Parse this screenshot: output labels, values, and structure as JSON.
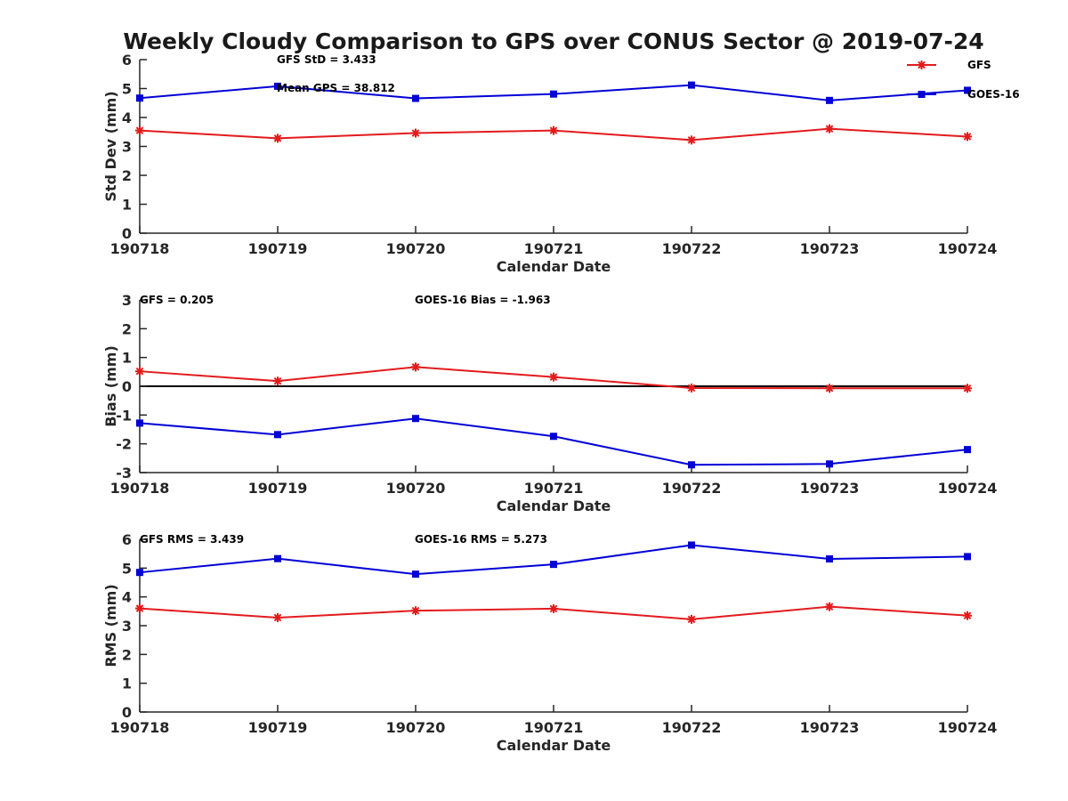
{
  "title": "Weekly Cloudy Comparison to GPS over CONUS Sector @ 2019-07-24",
  "colors": {
    "GFS": "#e41a1c",
    "GOES-16": "#0000d6",
    "zero_line": "#000000"
  },
  "legend": {
    "placement": "top-right",
    "entries": [
      "GFS",
      "GOES-16"
    ]
  },
  "chart_data": [
    {
      "type": "line",
      "xlabel": "Calendar Date",
      "ylabel": "Std Dev (mm)",
      "categories": [
        "190718",
        "190719",
        "190720",
        "190721",
        "190722",
        "190723",
        "190724"
      ],
      "ylim": [
        0,
        6
      ],
      "yticks": [
        0,
        1,
        2,
        3,
        4,
        5,
        6
      ],
      "series": [
        {
          "name": "GFS",
          "marker": "asterisk",
          "values": [
            3.55,
            3.28,
            3.46,
            3.55,
            3.22,
            3.61,
            3.34
          ]
        },
        {
          "name": "GOES-16",
          "marker": "square",
          "values": [
            4.67,
            5.08,
            4.66,
            4.81,
            5.12,
            4.59,
            4.94
          ]
        }
      ],
      "annotations": [
        "GFS StD = 3.433",
        "Mean GPS = 38.812"
      ],
      "zero_line": false
    },
    {
      "type": "line",
      "xlabel": "Calendar Date",
      "ylabel": "Bias (mm)",
      "categories": [
        "190718",
        "190719",
        "190720",
        "190721",
        "190722",
        "190723",
        "190724"
      ],
      "ylim": [
        -3,
        3
      ],
      "yticks": [
        -3,
        -2,
        -1,
        0,
        1,
        2,
        3
      ],
      "series": [
        {
          "name": "GFS",
          "marker": "asterisk",
          "values": [
            0.52,
            0.18,
            0.67,
            0.32,
            -0.06,
            -0.07,
            -0.07
          ]
        },
        {
          "name": "GOES-16",
          "marker": "square",
          "values": [
            -1.28,
            -1.68,
            -1.12,
            -1.74,
            -2.73,
            -2.7,
            -2.2
          ]
        }
      ],
      "annotations": [
        "GFS = 0.205",
        "GOES-16 Bias  = -1.963"
      ],
      "zero_line": true
    },
    {
      "type": "line",
      "xlabel": "Calendar Date",
      "ylabel": "RMS (mm)",
      "categories": [
        "190718",
        "190719",
        "190720",
        "190721",
        "190722",
        "190723",
        "190724"
      ],
      "ylim": [
        0,
        6
      ],
      "yticks": [
        0,
        1,
        2,
        3,
        4,
        5,
        6
      ],
      "series": [
        {
          "name": "GFS",
          "marker": "asterisk",
          "values": [
            3.6,
            3.28,
            3.52,
            3.59,
            3.22,
            3.66,
            3.35
          ]
        },
        {
          "name": "GOES-16",
          "marker": "square",
          "values": [
            4.85,
            5.33,
            4.79,
            5.13,
            5.8,
            5.32,
            5.4
          ]
        }
      ],
      "annotations": [
        "GFS RMS = 3.439",
        "GOES-16 RMS = 5.273"
      ],
      "zero_line": false
    }
  ]
}
